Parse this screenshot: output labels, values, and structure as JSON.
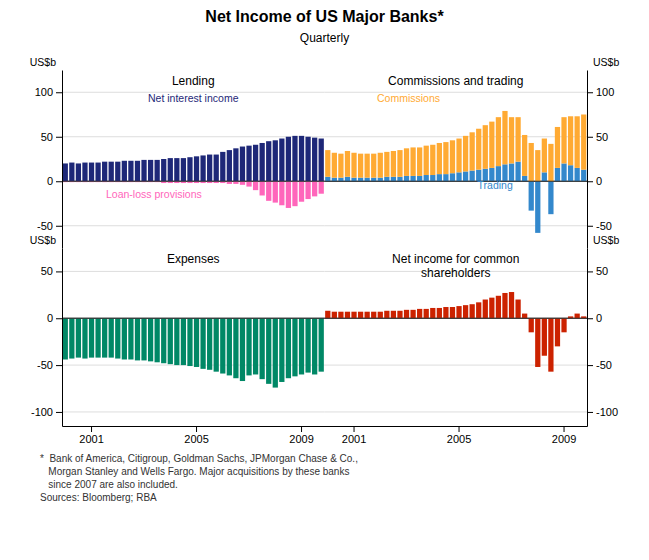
{
  "title": "Net Income of US Major Banks*",
  "subtitle": "Quarterly",
  "footnote": [
    "*  Bank of America, Citigroup, Goldman Sachs, JPMorgan Chase & Co.,",
    "   Morgan Stanley and Wells Fargo. Major acquisitions by these banks",
    "   since 2007 are also included.",
    "Sources: Bloomberg; RBA"
  ],
  "chart_data": [
    {
      "type": "bar",
      "title": "Lending",
      "ylabel": "US$b",
      "categories": [
        null,
        null,
        null,
        null,
        null,
        null,
        null,
        null,
        null,
        null,
        null,
        null,
        null,
        null,
        null,
        null,
        null,
        null,
        null,
        null,
        null,
        null,
        null,
        null,
        null,
        null,
        null,
        null,
        null,
        null,
        null,
        null,
        null,
        null,
        null,
        null,
        null,
        null,
        null,
        null
      ],
      "series": [
        {
          "name": "Net interest income",
          "color": "#1e2878",
          "values": [
            20,
            21,
            20,
            21,
            21,
            21,
            22,
            22,
            22,
            23,
            23,
            23,
            24,
            24,
            24,
            25,
            26,
            26,
            26,
            27,
            28,
            29,
            30,
            30,
            33,
            35,
            37,
            39,
            40,
            41,
            43,
            45,
            46,
            48,
            50,
            51,
            51,
            50,
            49,
            48
          ]
        },
        {
          "name": "Loan-loss provisions",
          "color": "#ff66bb",
          "values": [
            -1,
            -1,
            -1,
            -1,
            -1,
            -1,
            -1,
            -1,
            -1,
            -1,
            -1,
            -1,
            -1,
            -1,
            -1,
            -2,
            -2,
            -2,
            -2,
            -2,
            -2,
            -2,
            -2,
            -2,
            -2,
            -3,
            -3,
            -4,
            -6,
            -10,
            -16,
            -22,
            -24,
            -27,
            -30,
            -28,
            -23,
            -20,
            -17,
            -14
          ]
        }
      ],
      "stacked": false,
      "ylim": [
        -75,
        125
      ],
      "yticks": [
        -50,
        0,
        50,
        100
      ],
      "grid": true,
      "tick_labels": "y"
    },
    {
      "type": "bar",
      "title": "Commissions and trading",
      "ylabel": "US$b",
      "categories": [
        null,
        null,
        null,
        null,
        null,
        null,
        null,
        null,
        null,
        null,
        null,
        null,
        null,
        null,
        null,
        null,
        null,
        null,
        null,
        null,
        null,
        null,
        null,
        null,
        null,
        null,
        null,
        null,
        null,
        null,
        null,
        null,
        null,
        null,
        null,
        null,
        null,
        null,
        null,
        null
      ],
      "series": [
        {
          "name": "Trading",
          "color": "#3388cc",
          "values": [
            5,
            4,
            4,
            5,
            4,
            4,
            4,
            4,
            4,
            5,
            5,
            5,
            6,
            6,
            6,
            7,
            7,
            8,
            8,
            9,
            10,
            11,
            12,
            13,
            14,
            15,
            17,
            19,
            20,
            22,
            6,
            -33,
            -58,
            10,
            -37,
            15,
            20,
            18,
            15,
            13
          ]
        },
        {
          "name": "Commissions",
          "color": "#ffaa33",
          "values": [
            30,
            28,
            27,
            29,
            28,
            27,
            27,
            27,
            28,
            28,
            29,
            30,
            31,
            32,
            32,
            33,
            34,
            35,
            36,
            37,
            38,
            40,
            43,
            46,
            49,
            52,
            55,
            60,
            52,
            50,
            46,
            43,
            35,
            38,
            42,
            46,
            52,
            55,
            58,
            62
          ]
        }
      ],
      "stacked": true,
      "ylim": [
        -75,
        125
      ],
      "yticks": [
        -50,
        0,
        50,
        100
      ],
      "grid": true,
      "tick_labels": "y"
    },
    {
      "type": "bar",
      "title": "Expenses",
      "ylabel": "US$b",
      "categories": [
        null,
        null,
        null,
        null,
        "2001",
        null,
        null,
        null,
        null,
        null,
        null,
        null,
        null,
        null,
        null,
        null,
        null,
        null,
        null,
        null,
        "2005",
        null,
        null,
        null,
        null,
        null,
        null,
        null,
        null,
        null,
        null,
        null,
        null,
        null,
        null,
        null,
        "2009",
        null,
        null,
        null
      ],
      "series": [
        {
          "color": "#008866",
          "values": [
            -44,
            -43,
            -42,
            -43,
            -42,
            -42,
            -42,
            -42,
            -43,
            -44,
            -44,
            -45,
            -45,
            -46,
            -47,
            -48,
            -49,
            -50,
            -50,
            -51,
            -52,
            -54,
            -55,
            -57,
            -59,
            -61,
            -64,
            -67,
            -61,
            -60,
            -65,
            -70,
            -74,
            -68,
            -64,
            -62,
            -60,
            -58,
            -60,
            -57
          ]
        }
      ],
      "stacked": false,
      "ylim": [
        -115,
        75
      ],
      "yticks": [
        -100,
        -50,
        0,
        50
      ],
      "grid": true
    },
    {
      "type": "bar",
      "title": "Net income for common\nshareholders",
      "ylabel": "US$b",
      "categories": [
        null,
        null,
        null,
        null,
        "2001",
        null,
        null,
        null,
        null,
        null,
        null,
        null,
        null,
        null,
        null,
        null,
        null,
        null,
        null,
        null,
        "2005",
        null,
        null,
        null,
        null,
        null,
        null,
        null,
        null,
        null,
        null,
        null,
        null,
        null,
        null,
        null,
        "2009",
        null,
        null,
        null
      ],
      "series": [
        {
          "color": "#cc2200",
          "values": [
            8,
            7,
            7,
            7,
            7,
            7,
            7,
            7,
            7,
            8,
            8,
            8,
            9,
            9,
            10,
            10,
            11,
            11,
            12,
            12,
            13,
            14,
            15,
            17,
            20,
            22,
            24,
            27,
            28,
            20,
            5,
            -15,
            -52,
            -40,
            -57,
            -30,
            -15,
            2,
            5,
            2
          ]
        }
      ],
      "stacked": false,
      "ylim": [
        -115,
        75
      ],
      "yticks": [
        -100,
        -50,
        0,
        50
      ],
      "grid": true
    }
  ]
}
